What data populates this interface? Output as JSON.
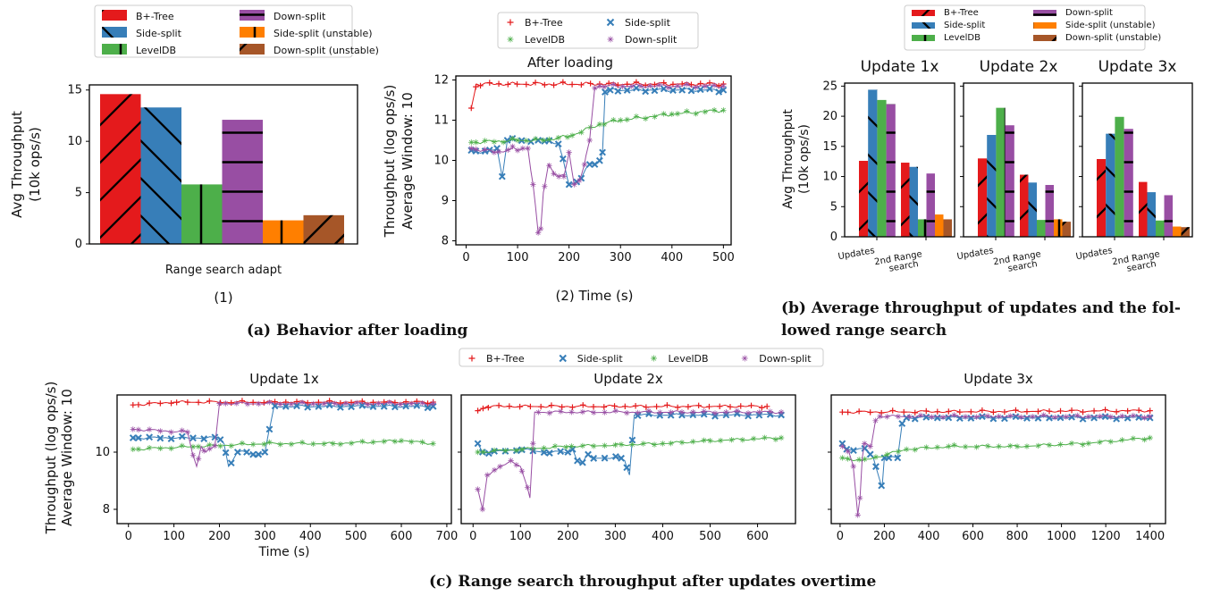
{
  "colors": {
    "btree": "#e41a1c",
    "side": "#377eb8",
    "leveldb": "#4daf4a",
    "down": "#984ea3",
    "side_unstable": "#ff7f00",
    "down_unstable": "#a65628"
  },
  "captions": {
    "a": "(a) Behavior after loading",
    "b_line1": "(b) Average throughput of updates and the fol-",
    "b_line2": "lowed range search",
    "c": "(c) Range search throughput after updates overtime"
  },
  "chart_data": [
    {
      "id": "a1",
      "type": "bar",
      "ylabel": [
        "Avg Throughput",
        "(10k ops/s)"
      ],
      "xlabel": "Range search adapt",
      "sublabel": "(1)",
      "ylim": [
        0,
        15.5
      ],
      "yticks": [
        0,
        5,
        10,
        15
      ],
      "legend": {
        "position": "top",
        "items": [
          "B+-Tree",
          "Down-split",
          "Side-split",
          "Side-split (unstable)",
          "LevelDB",
          "Down-split (unstable)"
        ]
      },
      "series": [
        {
          "name": "B+-Tree",
          "value": 14.6
        },
        {
          "name": "Side-split",
          "value": 13.3
        },
        {
          "name": "LevelDB",
          "value": 5.8
        },
        {
          "name": "Down-split",
          "value": 12.1
        },
        {
          "name": "Side-split (unstable)",
          "value": 2.3
        },
        {
          "name": "Down-split (unstable)",
          "value": 2.8
        }
      ]
    },
    {
      "id": "a2",
      "type": "line",
      "title": "After loading",
      "ylabel": [
        "Throughput (log ops/s)",
        "Average Window: 10"
      ],
      "xlabel": "(2) Time (s)",
      "xlim": [
        -20,
        515
      ],
      "ylim": [
        7.9,
        12.1
      ],
      "xticks": [
        0,
        100,
        200,
        300,
        400,
        500
      ],
      "yticks": [
        8,
        9,
        10,
        11,
        12
      ],
      "legend": {
        "position": "top",
        "items": [
          "B+-Tree",
          "Side-split",
          "LevelDB",
          "Down-split"
        ]
      },
      "series": [
        {
          "name": "B+-Tree",
          "x": [
            10,
            20,
            500
          ],
          "y": [
            11.3,
            11.9,
            11.9
          ]
        },
        {
          "name": "Side-split",
          "x": [
            10,
            40,
            60,
            70,
            80,
            140,
            160,
            180,
            200,
            220,
            240,
            250,
            260,
            265,
            270,
            280,
            500
          ],
          "y": [
            10.25,
            10.2,
            10.3,
            9.6,
            10.5,
            10.5,
            10.5,
            10.4,
            9.4,
            9.5,
            9.9,
            9.9,
            10.0,
            10.2,
            11.7,
            11.75,
            11.75
          ]
        },
        {
          "name": "LevelDB",
          "x": [
            10,
            100,
            150,
            200,
            260,
            300,
            400,
            500
          ],
          "y": [
            10.45,
            10.5,
            10.5,
            10.6,
            10.9,
            11.0,
            11.15,
            11.25
          ]
        },
        {
          "name": "Down-split",
          "x": [
            10,
            60,
            90,
            100,
            110,
            120,
            130,
            140,
            145,
            150,
            160,
            170,
            180,
            190,
            200,
            210,
            220,
            230,
            240,
            250,
            260,
            500
          ],
          "y": [
            10.3,
            10.2,
            10.3,
            10.25,
            10.3,
            10.3,
            9.4,
            8.2,
            8.3,
            9.2,
            9.9,
            9.7,
            9.6,
            9.6,
            10.2,
            9.4,
            9.5,
            9.9,
            10.5,
            11.8,
            11.85,
            11.85
          ]
        }
      ]
    },
    {
      "id": "b",
      "type": "bar",
      "ylabel": [
        "Avg Throughput",
        "(10k ops/s)"
      ],
      "ylim": [
        0,
        25.5
      ],
      "yticks": [
        0,
        5,
        10,
        15,
        20,
        25
      ],
      "categories": [
        "Updates",
        "2nd Range search"
      ],
      "legend": {
        "position": "top",
        "items": [
          "B+-Tree",
          "Down-split",
          "Side-split",
          "Side-split (unstable)",
          "LevelDB",
          "Down-split (unstable)"
        ]
      },
      "panels": [
        {
          "title": "Update 1x",
          "updates": [
            12.6,
            24.4,
            22.7,
            22.0
          ],
          "range": [
            12.3,
            11.6,
            2.9,
            10.5,
            3.7,
            2.9
          ]
        },
        {
          "title": "Update 2x",
          "updates": [
            13.0,
            16.9,
            21.4,
            18.5
          ],
          "range": [
            10.3,
            9.0,
            2.8,
            8.6,
            2.9,
            2.5
          ]
        },
        {
          "title": "Update 3x",
          "updates": [
            12.9,
            17.1,
            19.9,
            17.9
          ],
          "range": [
            9.1,
            7.4,
            2.7,
            6.9,
            1.7,
            1.6
          ]
        }
      ]
    },
    {
      "id": "c",
      "type": "line",
      "ylabel": [
        "Throughput (log ops/s)",
        "Average Window: 10"
      ],
      "xlabel": "Time (s)",
      "ylim": [
        7.5,
        12.0
      ],
      "yticks": [
        8,
        10
      ],
      "legend": {
        "position": "top",
        "items": [
          "B+-Tree",
          "Side-split",
          "LevelDB",
          "Down-split"
        ]
      },
      "panels": [
        {
          "title": "Update 1x",
          "xlim": [
            -25,
            710
          ],
          "xticks": [
            0,
            100,
            200,
            300,
            400,
            500,
            600,
            700
          ],
          "series": [
            {
              "name": "B+-Tree",
              "x": [
                10,
                100,
                670
              ],
              "y": [
                11.65,
                11.75,
                11.75
              ]
            },
            {
              "name": "Side-split",
              "x": [
                10,
                200,
                210,
                220,
                240,
                260,
                280,
                300,
                310,
                320,
                670
              ],
              "y": [
                10.5,
                10.5,
                10.3,
                9.5,
                10.0,
                10.0,
                9.9,
                10.0,
                10.8,
                11.6,
                11.6
              ]
            },
            {
              "name": "LevelDB",
              "x": [
                10,
                150,
                300,
                450,
                600,
                670
              ],
              "y": [
                10.1,
                10.2,
                10.3,
                10.3,
                10.4,
                10.3
              ]
            },
            {
              "name": "Down-split",
              "x": [
                10,
                130,
                140,
                150,
                160,
                170,
                180,
                190,
                200,
                670
              ],
              "y": [
                10.8,
                10.7,
                10.0,
                9.5,
                10.2,
                10.0,
                10.1,
                10.2,
                11.7,
                11.7
              ]
            }
          ]
        },
        {
          "title": "Update 2x",
          "xlim": [
            -25,
            680
          ],
          "xticks": [
            0,
            100,
            200,
            300,
            400,
            500,
            600
          ],
          "series": [
            {
              "name": "B+-Tree",
              "x": [
                10,
                30,
                620
              ],
              "y": [
                11.45,
                11.6,
                11.6
              ]
            },
            {
              "name": "Side-split",
              "x": [
                10,
                20,
                40,
                100,
                150,
                200,
                210,
                220,
                230,
                240,
                250,
                310,
                320,
                330,
                340,
                650
              ],
              "y": [
                10.3,
                10.0,
                10.0,
                10.1,
                10.0,
                10.0,
                10.1,
                9.7,
                9.6,
                9.9,
                9.8,
                9.8,
                9.7,
                9.2,
                11.3,
                11.3
              ]
            },
            {
              "name": "LevelDB",
              "x": [
                10,
                100,
                200,
                300,
                400,
                500,
                650
              ],
              "y": [
                10.0,
                10.1,
                10.2,
                10.25,
                10.3,
                10.4,
                10.5
              ]
            },
            {
              "name": "Down-split",
              "x": [
                10,
                20,
                30,
                50,
                80,
                100,
                110,
                120,
                130,
                650
              ],
              "y": [
                8.7,
                8.0,
                9.2,
                9.4,
                9.7,
                9.5,
                9.0,
                8.4,
                11.4,
                11.4
              ]
            }
          ]
        },
        {
          "title": "Update 3x",
          "xlim": [
            -40,
            1470
          ],
          "xticks": [
            0,
            200,
            400,
            600,
            800,
            1000,
            1200,
            1400
          ],
          "series": [
            {
              "name": "B+-Tree",
              "x": [
                10,
                1400
              ],
              "y": [
                11.4,
                11.45
              ]
            },
            {
              "name": "Side-split",
              "x": [
                10,
                30,
                120,
                150,
                180,
                190,
                200,
                220,
                260,
                280,
                300,
                1400
              ],
              "y": [
                10.3,
                10.1,
                10.1,
                9.8,
                9.0,
                8.8,
                9.8,
                9.8,
                9.8,
                11.0,
                11.2,
                11.2
              ]
            },
            {
              "name": "LevelDB",
              "x": [
                10,
                100,
                300,
                500,
                800,
                1100,
                1400
              ],
              "y": [
                9.8,
                9.7,
                10.1,
                10.2,
                10.2,
                10.3,
                10.5
              ]
            },
            {
              "name": "Down-split",
              "x": [
                10,
                40,
                60,
                80,
                90,
                100,
                110,
                140,
                160,
                180,
                1400
              ],
              "y": [
                10.2,
                10.0,
                9.5,
                7.8,
                8.4,
                9.8,
                10.3,
                10.2,
                11.1,
                11.25,
                11.25
              ]
            }
          ]
        }
      ]
    }
  ]
}
